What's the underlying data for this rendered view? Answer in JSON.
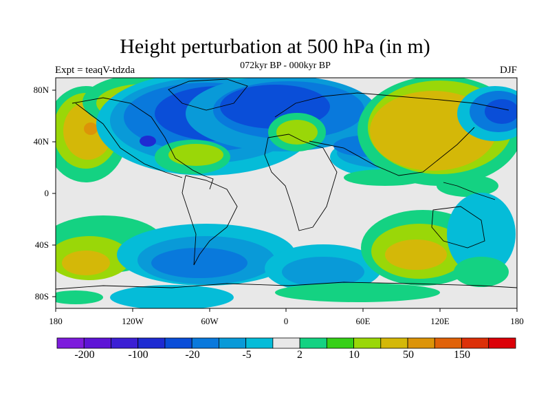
{
  "map": {
    "title": "Height perturbation at 500 hPa (in m)",
    "subtitle": "072kyr BP - 000kyr BP",
    "experiment": "Expt = teaqV-tdzda",
    "season": "DJF",
    "lat_labels": [
      "80N",
      "40N",
      "0",
      "40S",
      "80S"
    ],
    "lon_labels": [
      "180",
      "120W",
      "60W",
      "0",
      "60E",
      "120E",
      "180"
    ]
  },
  "colorbar": {
    "colors": [
      "#7d1cdc",
      "#5e14d6",
      "#3c1fd4",
      "#1e2bd2",
      "#0a4ed8",
      "#0979dc",
      "#099ad8",
      "#05bcd8",
      "#e8e8e8",
      "#14d282",
      "#36d017",
      "#9ad708",
      "#d4b808",
      "#dc9408",
      "#e06208",
      "#dc3008",
      "#dc0008"
    ],
    "labels": [
      "-200",
      "-100",
      "-20",
      "-5",
      "2",
      "10",
      "50",
      "150"
    ]
  }
}
